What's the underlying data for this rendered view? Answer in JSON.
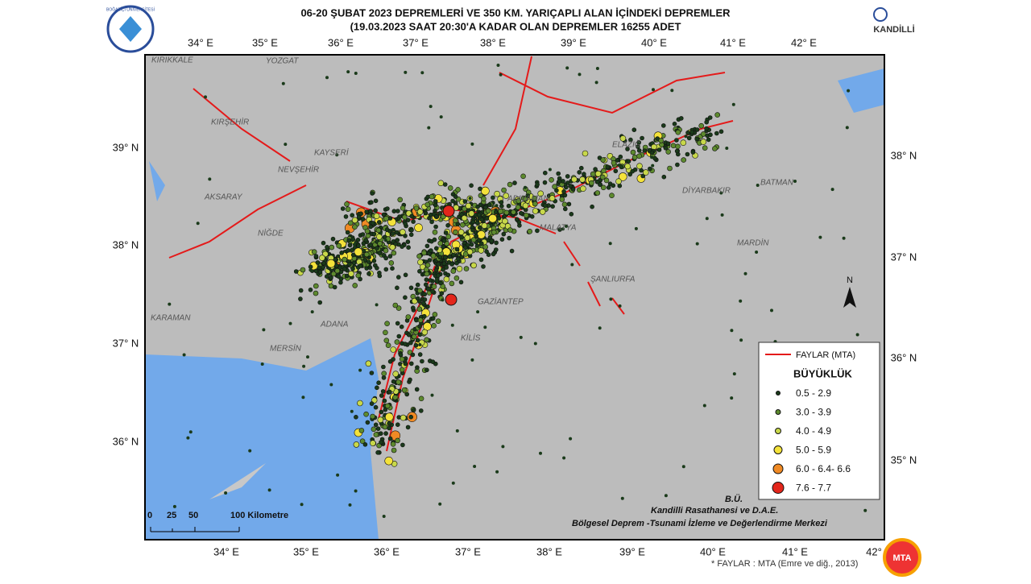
{
  "header": {
    "title_line1": "06-20 ŞUBAT 2023  DEPREMLERİ VE 350  KM. YARIÇAPLI  ALAN  İÇİNDEKİ  DEPREMLER",
    "title_line2": "(19.03.2023 SAAT  20:30'A   KADAR OLAN DEPREMLER   16255 ADET",
    "left_logo": "BOĞAZİÇİ ÜNİVERSİTESİ",
    "right_logo": "KANDİLLİ"
  },
  "axes": {
    "top": [
      "34° E",
      "35° E",
      "36° E",
      "37° E",
      "38° E",
      "39° E",
      "40° E",
      "41° E",
      "42° E"
    ],
    "bottom": [
      "34° E",
      "35° E",
      "36° E",
      "37° E",
      "38° E",
      "39° E",
      "40° E",
      "41° E",
      "42°"
    ],
    "left": [
      "39° N",
      "38° N",
      "37° N",
      "36° N"
    ],
    "right": [
      "38° N",
      "37° N",
      "36° N",
      "35° N"
    ]
  },
  "cities": [
    "KIRIKKALE",
    "YOZGAT",
    "KIRŞEHİR",
    "NEVŞEHİR",
    "KAYSERİ",
    "AKSARAY",
    "NİĞDE",
    "KARAMAN",
    "MERSİN",
    "ADANA",
    "GAZİANTEP",
    "KİLİS",
    "ŞANLIURFA",
    "MARDİN",
    "DİYARBAKIR",
    "BATMAN",
    "ADIYAMAN",
    "MALATYA",
    "ELAZIĞ"
  ],
  "legend": {
    "faults": "FAYLAR (MTA)",
    "heading": "BÜYÜKLÜK",
    "classes": [
      "0.5 - 2.9",
      "3.0 - 3.9",
      "4.0 - 4.9",
      "5.0 - 5.9",
      "6.0 - 6.4- 6.6",
      "7.6 - 7.7"
    ]
  },
  "credits": [
    "B.Ü.",
    "Kandilli Rasathanesi ve D.A.E.",
    "Bölgesel Deprem -Tsunami İzleme ve Değerlendirme Merkezi"
  ],
  "footnote": "* FAYLAR : MTA (Emre ve diğ., 2013)",
  "scale": [
    "0",
    "25",
    "50",
    "100 Kilometre"
  ],
  "north": "N",
  "mta_logo": "MTA"
}
